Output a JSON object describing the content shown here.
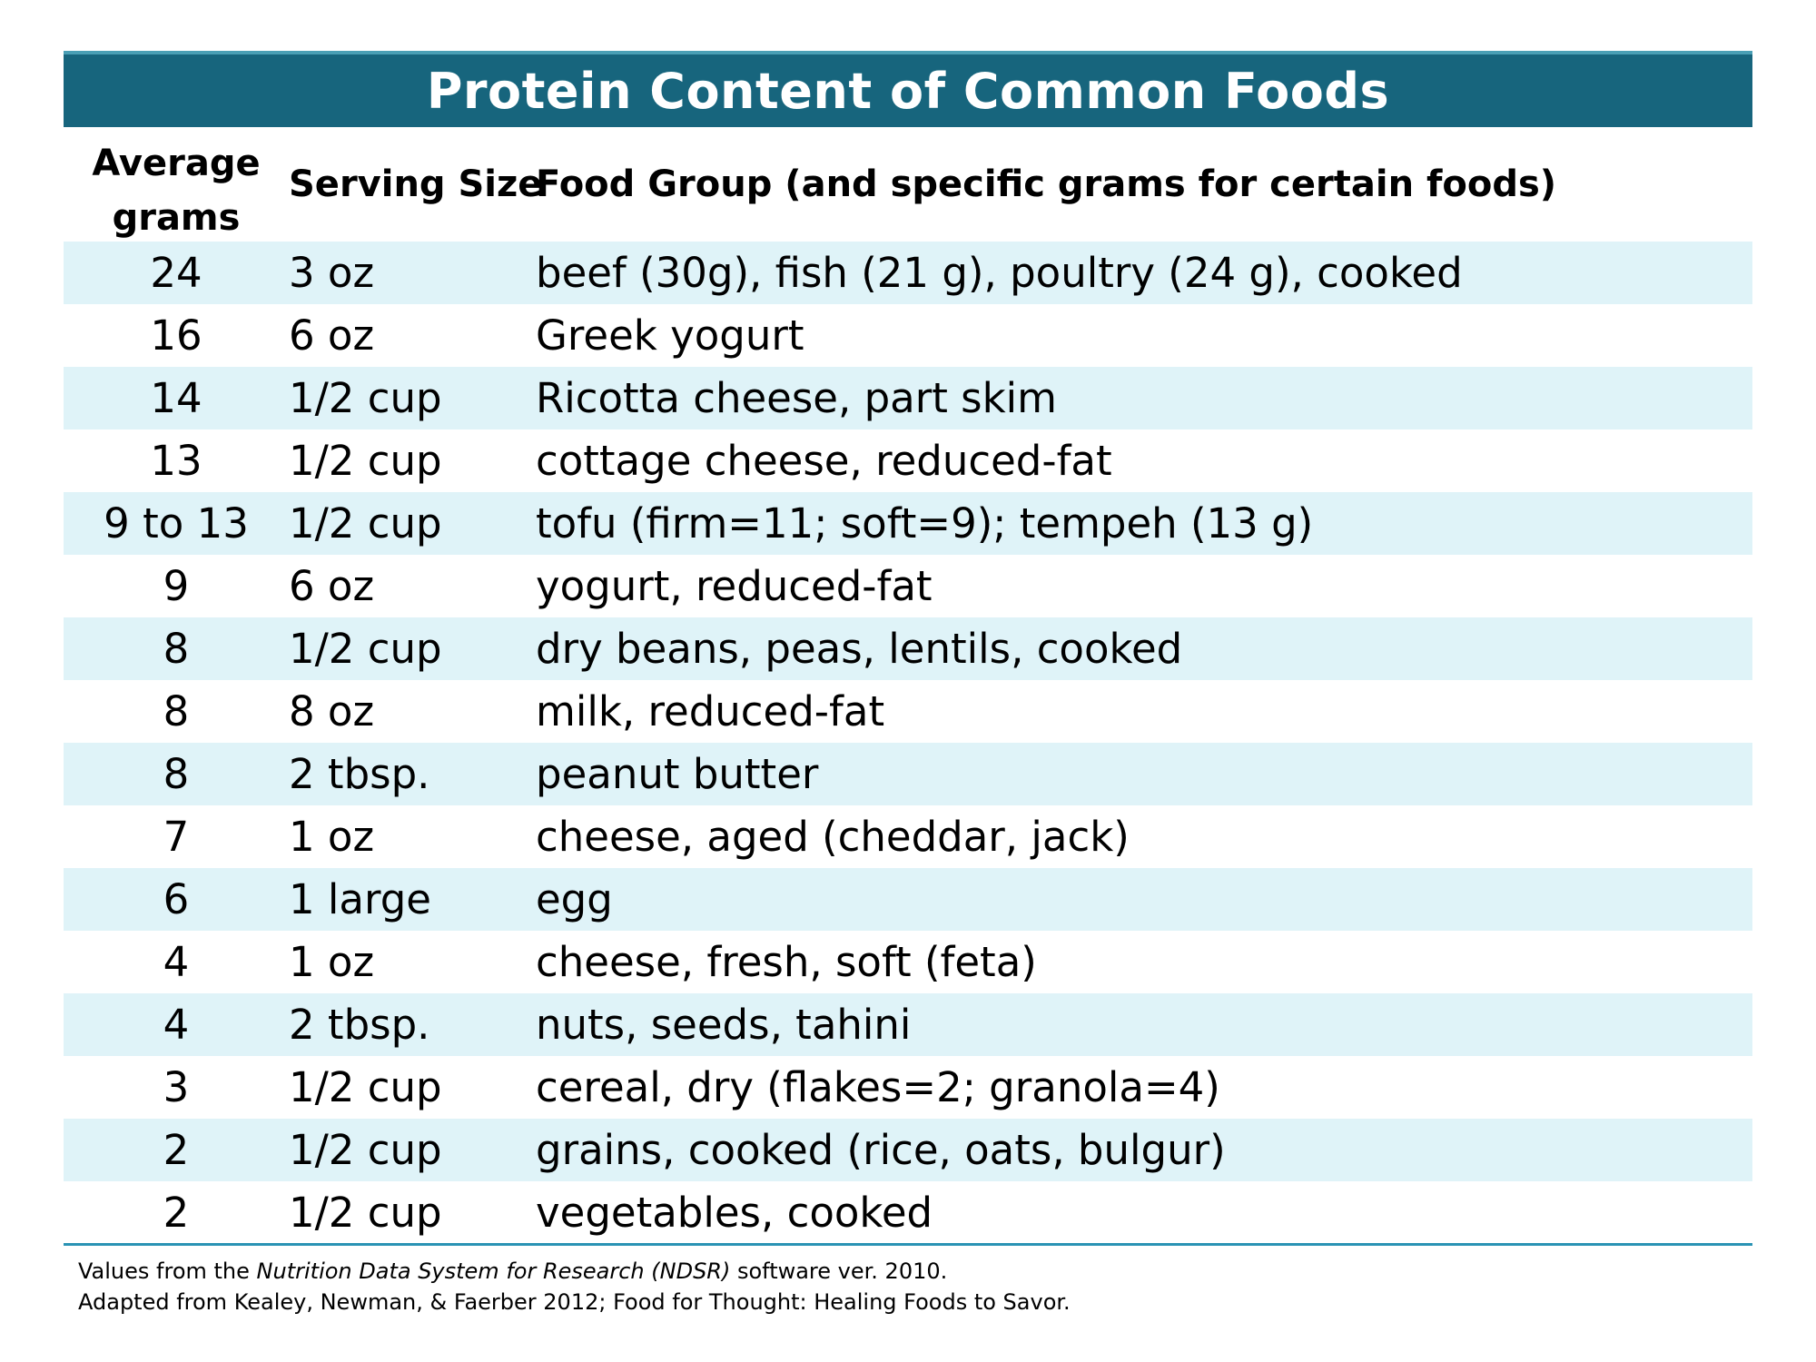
{
  "title": "Protein Content of Common Foods",
  "colors": {
    "title_bar": "#17657d",
    "row_shade": "#dff3f8",
    "rule": "#2a93b4"
  },
  "headers": {
    "grams_line1": "Average",
    "grams_line2": "grams",
    "serving": "Serving Size",
    "food": "Food Group (and specific grams for certain foods)"
  },
  "rows": [
    {
      "grams": "24",
      "serving": "3 oz",
      "food": "beef (30g), fish (21 g), poultry (24 g), cooked"
    },
    {
      "grams": "16",
      "serving": "6 oz",
      "food": "Greek yogurt"
    },
    {
      "grams": "14",
      "serving": "1/2 cup",
      "food": "Ricotta cheese, part skim"
    },
    {
      "grams": "13",
      "serving": "1/2 cup",
      "food": "cottage cheese, reduced-fat"
    },
    {
      "grams": "9 to 13",
      "serving": "1/2 cup",
      "food": "tofu (firm=11; soft=9); tempeh (13 g)"
    },
    {
      "grams": "9",
      "serving": "6 oz",
      "food": "yogurt, reduced-fat"
    },
    {
      "grams": "8",
      "serving": "1/2 cup",
      "food": "dry beans, peas, lentils, cooked"
    },
    {
      "grams": "8",
      "serving": "8 oz",
      "food": "milk, reduced-fat"
    },
    {
      "grams": "8",
      "serving": "2 tbsp.",
      "food": "peanut butter"
    },
    {
      "grams": "7",
      "serving": "1 oz",
      "food": "cheese, aged (cheddar, jack)"
    },
    {
      "grams": "6",
      "serving": "1 large",
      "food": "egg"
    },
    {
      "grams": "4",
      "serving": "1 oz",
      "food": "cheese, fresh, soft (feta)"
    },
    {
      "grams": "4",
      "serving": "2 tbsp.",
      "food": "nuts, seeds, tahini"
    },
    {
      "grams": "3",
      "serving": "1/2 cup",
      "food": "cereal, dry (flakes=2; granola=4)"
    },
    {
      "grams": "2",
      "serving": "1/2 cup",
      "food": "grains, cooked (rice, oats, bulgur)"
    },
    {
      "grams": "2",
      "serving": "1/2 cup",
      "food": "vegetables, cooked"
    }
  ],
  "footnotes": {
    "line1_prefix": "Values from the ",
    "line1_source": "Nutrition Data System for Research (NDSR)",
    "line1_suffix": " software ver. 2010.",
    "line2": "Adapted from Kealey, Newman, & Faerber 2012; Food for Thought: Healing Foods to Savor."
  }
}
